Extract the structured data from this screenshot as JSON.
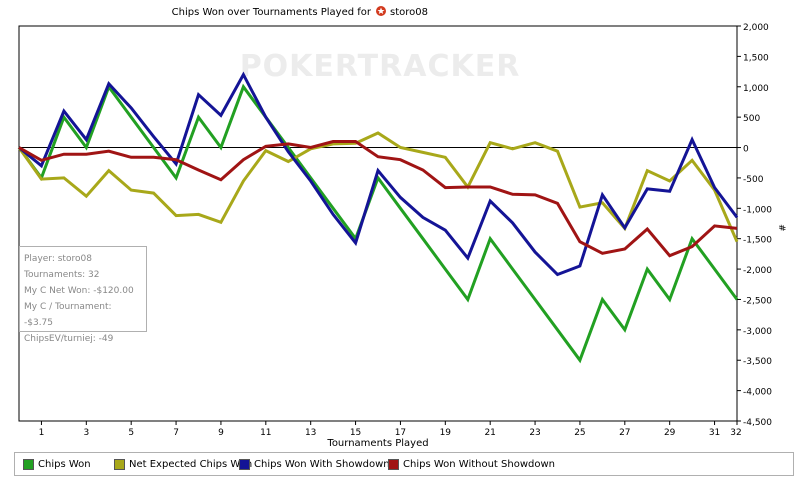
{
  "title_prefix": "Chips Won over Tournaments Played for",
  "player_name": "storo08",
  "player_icon": "pokerstars-icon",
  "watermark": "POKERTRACKER",
  "info": {
    "player": "Player: storo08",
    "tournaments": "Tournaments: 32",
    "net_won": "My C Net Won: -$120.00",
    "per_tournament": "My C / Tournament: -$3.75",
    "chips_ev": "ChipsEV/turniej: -49"
  },
  "colors": {
    "chips_won": "#22a022",
    "net_expected": "#a8a81a",
    "with_showdown": "#141496",
    "without_showdown": "#a01414"
  },
  "chart_data": {
    "type": "line",
    "title": "Chips Won over Tournaments Played for storo08",
    "xlabel": "Tournaments Played",
    "ylabel": "#",
    "xlim": [
      0,
      32
    ],
    "ylim": [
      -4500,
      2000
    ],
    "x_ticks": [
      1,
      3,
      5,
      7,
      9,
      11,
      13,
      15,
      17,
      19,
      21,
      23,
      25,
      27,
      29,
      31,
      32
    ],
    "y_ticks": [
      2000,
      1500,
      1000,
      500,
      0,
      -500,
      -1000,
      -1500,
      -2000,
      -2500,
      -3000,
      -3500,
      -4000,
      -4500
    ],
    "y_tick_labels": [
      "2,000",
      "1,500",
      "1,000",
      "500",
      "0",
      "-500",
      "-1,000",
      "-1,500",
      "-2,000",
      "-2,500",
      "-3,000",
      "-3,500",
      "-4,000",
      "-4,500"
    ],
    "zero_line": true,
    "legend_position": "bottom",
    "x": [
      0,
      1,
      2,
      3,
      4,
      5,
      6,
      7,
      8,
      9,
      10,
      11,
      12,
      13,
      14,
      15,
      16,
      17,
      18,
      19,
      20,
      21,
      22,
      23,
      24,
      25,
      26,
      27,
      28,
      29,
      30,
      31,
      32
    ],
    "series": [
      {
        "name": "Chips Won",
        "color_key": "chips_won",
        "values": [
          0,
          -500,
          500,
          0,
          1000,
          500,
          0,
          -500,
          500,
          0,
          1000,
          500,
          0,
          -500,
          -1000,
          -1500,
          -500,
          -1000,
          -1500,
          -2000,
          -2500,
          -1500,
          -2000,
          -2500,
          -3000,
          -3500,
          -2500,
          -3000,
          -2000,
          -2500,
          -1500,
          -2000,
          -2500
        ]
      },
      {
        "name": "Net Expected Chips Won",
        "color_key": "net_expected",
        "values": [
          0,
          -520,
          -500,
          -800,
          -380,
          -700,
          -750,
          -1120,
          -1100,
          -1230,
          -550,
          -50,
          -230,
          -20,
          60,
          70,
          240,
          0,
          -80,
          -160,
          -650,
          80,
          -20,
          80,
          -60,
          -980,
          -910,
          -1330,
          -380,
          -550,
          -210,
          -700,
          -1550
        ]
      },
      {
        "name": "Chips Won With Showdown",
        "color_key": "with_showdown",
        "values": [
          0,
          -300,
          600,
          130,
          1050,
          650,
          180,
          -270,
          870,
          530,
          1200,
          500,
          -70,
          -550,
          -1100,
          -1570,
          -380,
          -820,
          -1150,
          -1360,
          -1820,
          -880,
          -1240,
          -1720,
          -2090,
          -1950,
          -780,
          -1320,
          -680,
          -720,
          130,
          -660,
          -1150
        ]
      },
      {
        "name": "Chips Won Without Showdown",
        "color_key": "without_showdown",
        "values": [
          0,
          -210,
          -110,
          -110,
          -60,
          -160,
          -160,
          -200,
          -370,
          -530,
          -200,
          20,
          60,
          0,
          100,
          100,
          -150,
          -200,
          -370,
          -660,
          -650,
          -650,
          -770,
          -780,
          -920,
          -1550,
          -1740,
          -1670,
          -1340,
          -1780,
          -1630,
          -1290,
          -1330
        ]
      }
    ]
  },
  "x_tick_labels": [
    "1",
    "3",
    "5",
    "7",
    "9",
    "11",
    "13",
    "15",
    "17",
    "19",
    "21",
    "23",
    "25",
    "27",
    "29",
    "31",
    "32"
  ],
  "legend": [
    {
      "label": "Chips Won",
      "color_key": "chips_won"
    },
    {
      "label": "Net Expected Chips Won",
      "color_key": "net_expected"
    },
    {
      "label": "Chips Won With Showdown",
      "color_key": "with_showdown"
    },
    {
      "label": "Chips Won Without Showdown",
      "color_key": "without_showdown"
    }
  ]
}
